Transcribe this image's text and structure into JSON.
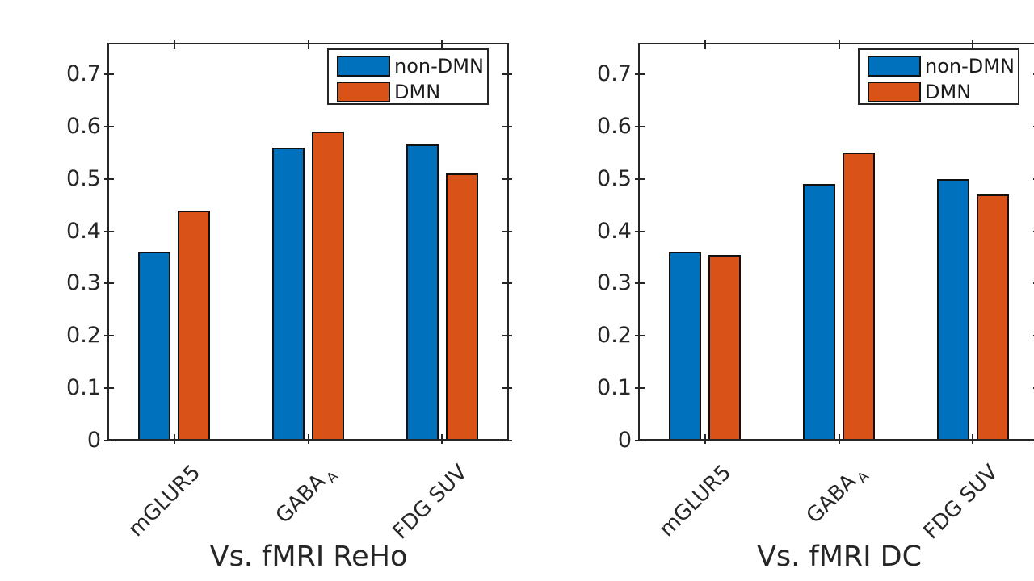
{
  "figure": {
    "background_color": "#ffffff",
    "axis_color": "#262626",
    "text_color": "#262626",
    "bar_edge_color": "#111111",
    "series_colors": [
      "#0072BD",
      "#D95319"
    ]
  },
  "chart_data": [
    {
      "type": "bar",
      "title": "Vs. fMRI ReHo",
      "title_position": "below-x-axis",
      "categories": [
        {
          "label": "mGLUR5",
          "sub": ""
        },
        {
          "label": "GABA",
          "sub": "A"
        },
        {
          "label": "FDG SUV",
          "sub": ""
        }
      ],
      "series": [
        {
          "name": "non-DMN",
          "values": [
            0.36,
            0.56,
            0.565
          ]
        },
        {
          "name": "DMN",
          "values": [
            0.44,
            0.59,
            0.51
          ]
        }
      ],
      "ylim": [
        0,
        0.76
      ],
      "yticks": [
        0,
        0.1,
        0.2,
        0.3,
        0.4,
        0.5,
        0.6,
        0.7
      ],
      "ytick_labels": [
        "0",
        "0.1",
        "0.2",
        "0.3",
        "0.4",
        "0.5",
        "0.6",
        "0.7"
      ],
      "legend_position": "top-right-inside",
      "grid": false
    },
    {
      "type": "bar",
      "title": "Vs. fMRI DC",
      "title_position": "below-x-axis",
      "categories": [
        {
          "label": "mGLUR5",
          "sub": ""
        },
        {
          "label": "GABA",
          "sub": "A"
        },
        {
          "label": "FDG SUV",
          "sub": ""
        }
      ],
      "series": [
        {
          "name": "non-DMN",
          "values": [
            0.36,
            0.49,
            0.5
          ]
        },
        {
          "name": "DMN",
          "values": [
            0.355,
            0.55,
            0.47
          ]
        }
      ],
      "ylim": [
        0,
        0.76
      ],
      "yticks": [
        0,
        0.1,
        0.2,
        0.3,
        0.4,
        0.5,
        0.6,
        0.7
      ],
      "ytick_labels": [
        "0",
        "0.1",
        "0.2",
        "0.3",
        "0.4",
        "0.5",
        "0.6",
        "0.7"
      ],
      "legend_position": "top-right-inside",
      "grid": false
    }
  ]
}
